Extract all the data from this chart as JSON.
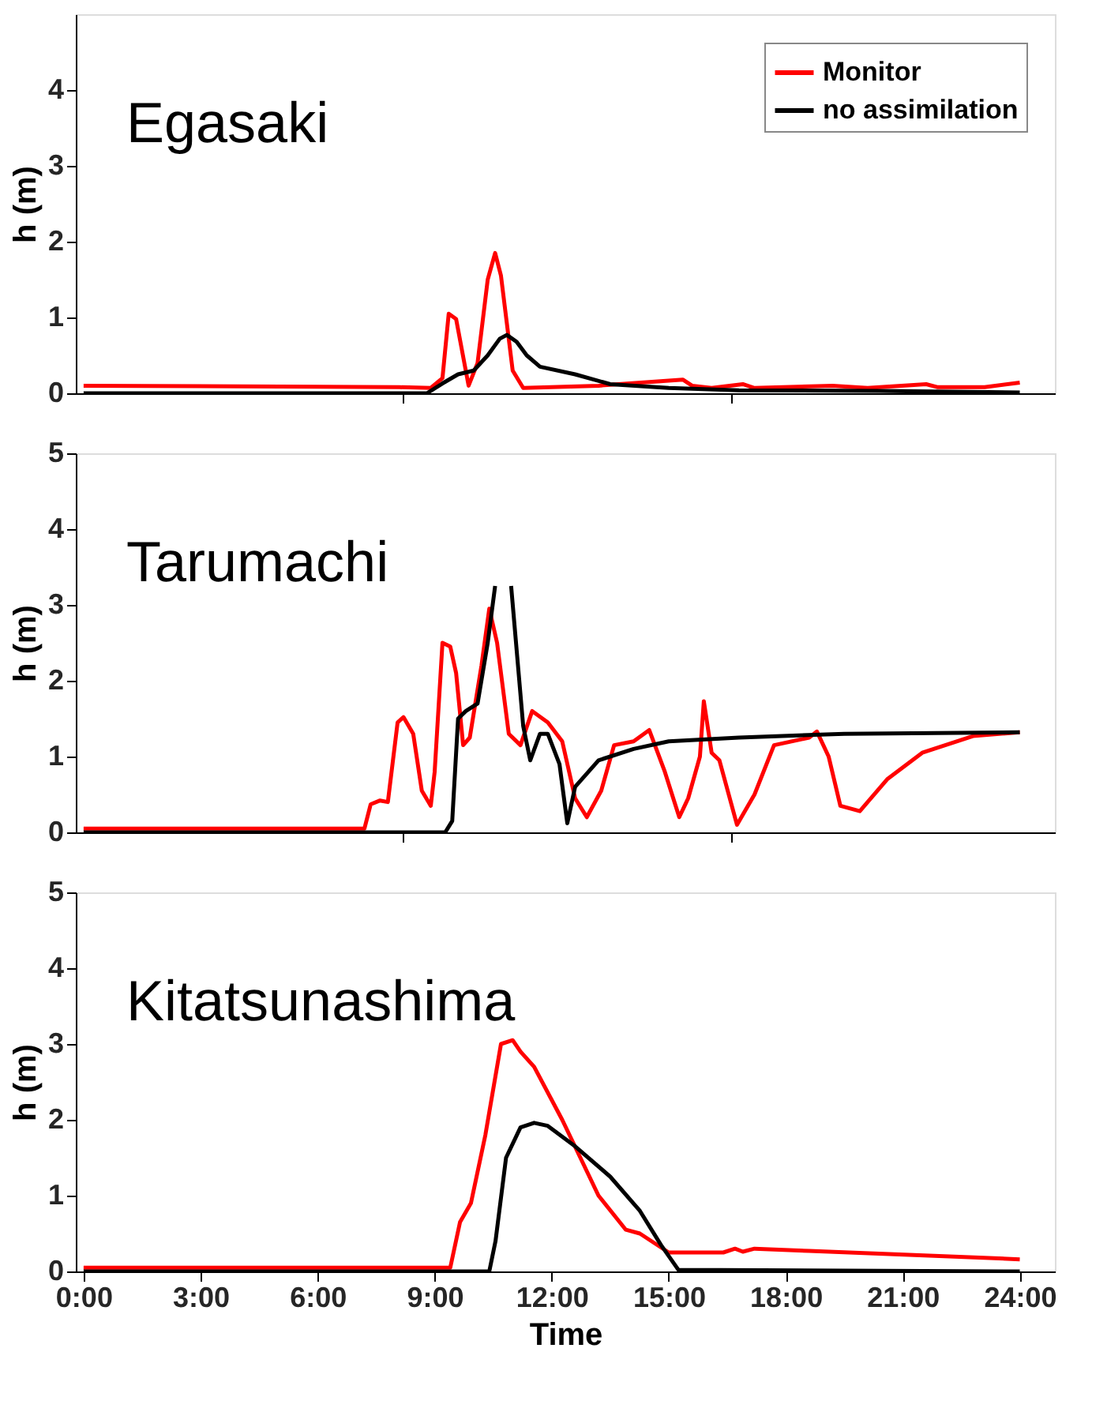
{
  "chart_data": [
    {
      "type": "line",
      "annotations": [
        "Egasaki"
      ],
      "legend": "top right",
      "grid": false,
      "tick_labels": "y",
      "ylabel": "h (m)",
      "xlim": [
        -0.2,
        24.9
      ],
      "xticks": [
        {
          "value": 8.2,
          "label": null
        },
        {
          "value": 16.6,
          "label": null
        }
      ],
      "ylim": [
        0,
        5
      ],
      "yticks": [
        0,
        1,
        2,
        3,
        4
      ],
      "series": [
        {
          "name": "Monitor",
          "color": "#ff0000",
          "x": [
            0,
            8.1,
            8.9,
            9.2,
            9.36,
            9.55,
            9.87,
            10.1,
            10.36,
            10.55,
            10.7,
            11.0,
            11.27,
            13.2,
            15.36,
            15.6,
            16.1,
            16.9,
            17.2,
            19.2,
            20.1,
            21.6,
            21.9,
            23.1,
            24
          ],
          "values": [
            0.1,
            0.08,
            0.07,
            0.2,
            1.05,
            0.98,
            0.1,
            0.4,
            1.5,
            1.85,
            1.55,
            0.3,
            0.07,
            0.1,
            0.18,
            0.1,
            0.07,
            0.12,
            0.07,
            0.1,
            0.07,
            0.12,
            0.08,
            0.08,
            0.14
          ]
        },
        {
          "name": "no assimilation",
          "color": "#000000",
          "x": [
            0,
            8.8,
            9.2,
            9.6,
            10.0,
            10.36,
            10.67,
            10.85,
            11.1,
            11.36,
            11.7,
            12.6,
            13.5,
            15.0,
            16.8,
            20.4,
            24
          ],
          "values": [
            0,
            0,
            0.13,
            0.25,
            0.3,
            0.5,
            0.72,
            0.77,
            0.68,
            0.5,
            0.35,
            0.25,
            0.12,
            0.07,
            0.04,
            0.03,
            0.01
          ]
        }
      ]
    },
    {
      "type": "line",
      "annotations": [
        "Tarumachi"
      ],
      "grid": false,
      "tick_labels": "y",
      "ylabel": "h (m)",
      "xlim": [
        -0.2,
        24.9
      ],
      "xticks": [
        {
          "value": 8.2,
          "label": null
        },
        {
          "value": 16.6,
          "label": null
        }
      ],
      "ylim": [
        0,
        5
      ],
      "yticks": [
        0,
        1,
        2,
        3,
        4,
        5
      ],
      "series": [
        {
          "color": "#ff0000",
          "x": [
            0,
            7.2,
            7.36,
            7.6,
            7.8,
            8.05,
            8.2,
            8.45,
            8.67,
            8.9,
            9.0,
            9.2,
            9.4,
            9.55,
            9.73,
            9.9,
            10.2,
            10.4,
            10.6,
            10.9,
            11.2,
            11.5,
            11.9,
            12.27,
            12.6,
            12.9,
            13.27,
            13.6,
            14.1,
            14.5,
            14.9,
            15.27,
            15.5,
            15.8,
            15.9,
            16.1,
            16.3,
            16.75,
            17.2,
            17.7,
            18.6,
            18.8,
            19.1,
            19.4,
            19.9,
            20.6,
            21.5,
            22.8,
            24
          ],
          "values": [
            0.05,
            0.05,
            0.37,
            0.42,
            0.4,
            1.45,
            1.52,
            1.3,
            0.55,
            0.35,
            0.8,
            2.5,
            2.45,
            2.1,
            1.15,
            1.25,
            2.2,
            2.95,
            2.5,
            1.3,
            1.15,
            1.6,
            1.45,
            1.2,
            0.45,
            0.2,
            0.55,
            1.15,
            1.2,
            1.35,
            0.8,
            0.2,
            0.45,
            1.0,
            1.73,
            1.05,
            0.95,
            0.1,
            0.5,
            1.15,
            1.25,
            1.33,
            1.0,
            0.35,
            0.28,
            0.7,
            1.05,
            1.27,
            1.32
          ]
        },
        {
          "color": "#000000",
          "x": [
            0,
            9.27,
            9.45,
            9.6,
            9.8,
            10.1,
            10.36,
            10.55,
            10.75,
            10.96,
            11.27,
            11.45,
            11.7,
            11.9,
            12.2,
            12.4,
            12.6,
            13.2,
            14.1,
            15.0,
            16.8,
            19.5,
            24
          ],
          "values": [
            0,
            0,
            0.15,
            1.5,
            1.6,
            1.7,
            2.5,
            3.25,
            null,
            3.25,
            1.4,
            0.95,
            1.3,
            1.3,
            0.9,
            0.12,
            0.6,
            0.95,
            1.1,
            1.2,
            1.25,
            1.3,
            1.32
          ]
        }
      ]
    },
    {
      "type": "line",
      "annotations": [
        "Kitatsunashima"
      ],
      "grid": false,
      "ylabel": "h (m)",
      "xlabel": "Time",
      "xlim": [
        -0.2,
        24.9
      ],
      "xticks": [
        {
          "value": 0,
          "label": "0:00"
        },
        {
          "value": 3,
          "label": "3:00"
        },
        {
          "value": 6,
          "label": "6:00"
        },
        {
          "value": 9,
          "label": "9:00"
        },
        {
          "value": 12,
          "label": "12:00"
        },
        {
          "value": 15,
          "label": "15:00"
        },
        {
          "value": 18,
          "label": "18:00"
        },
        {
          "value": 21,
          "label": "21:00"
        },
        {
          "value": 24,
          "label": "24:00"
        }
      ],
      "ylim": [
        0,
        5
      ],
      "yticks": [
        0,
        1,
        2,
        3,
        4,
        5
      ],
      "series": [
        {
          "color": "#ff0000",
          "x": [
            0,
            9.4,
            9.65,
            9.93,
            10.3,
            10.7,
            11.0,
            11.2,
            11.55,
            12.27,
            13.2,
            13.9,
            14.26,
            15.0,
            16.4,
            16.7,
            16.9,
            17.2,
            18.6,
            24
          ],
          "values": [
            0.05,
            0.05,
            0.65,
            0.9,
            1.8,
            3.0,
            3.05,
            2.9,
            2.7,
            2.0,
            1.0,
            0.55,
            0.5,
            0.25,
            0.25,
            0.3,
            0.26,
            0.3,
            0.27,
            0.16
          ]
        },
        {
          "color": "#000000",
          "x": [
            0,
            10.4,
            10.56,
            10.83,
            11.2,
            11.55,
            11.9,
            12.6,
            13.5,
            14.26,
            14.8,
            15.25,
            24
          ],
          "values": [
            0,
            0,
            0.4,
            1.5,
            1.9,
            1.96,
            1.92,
            1.65,
            1.25,
            0.8,
            0.35,
            0.02,
            0
          ]
        }
      ]
    }
  ]
}
